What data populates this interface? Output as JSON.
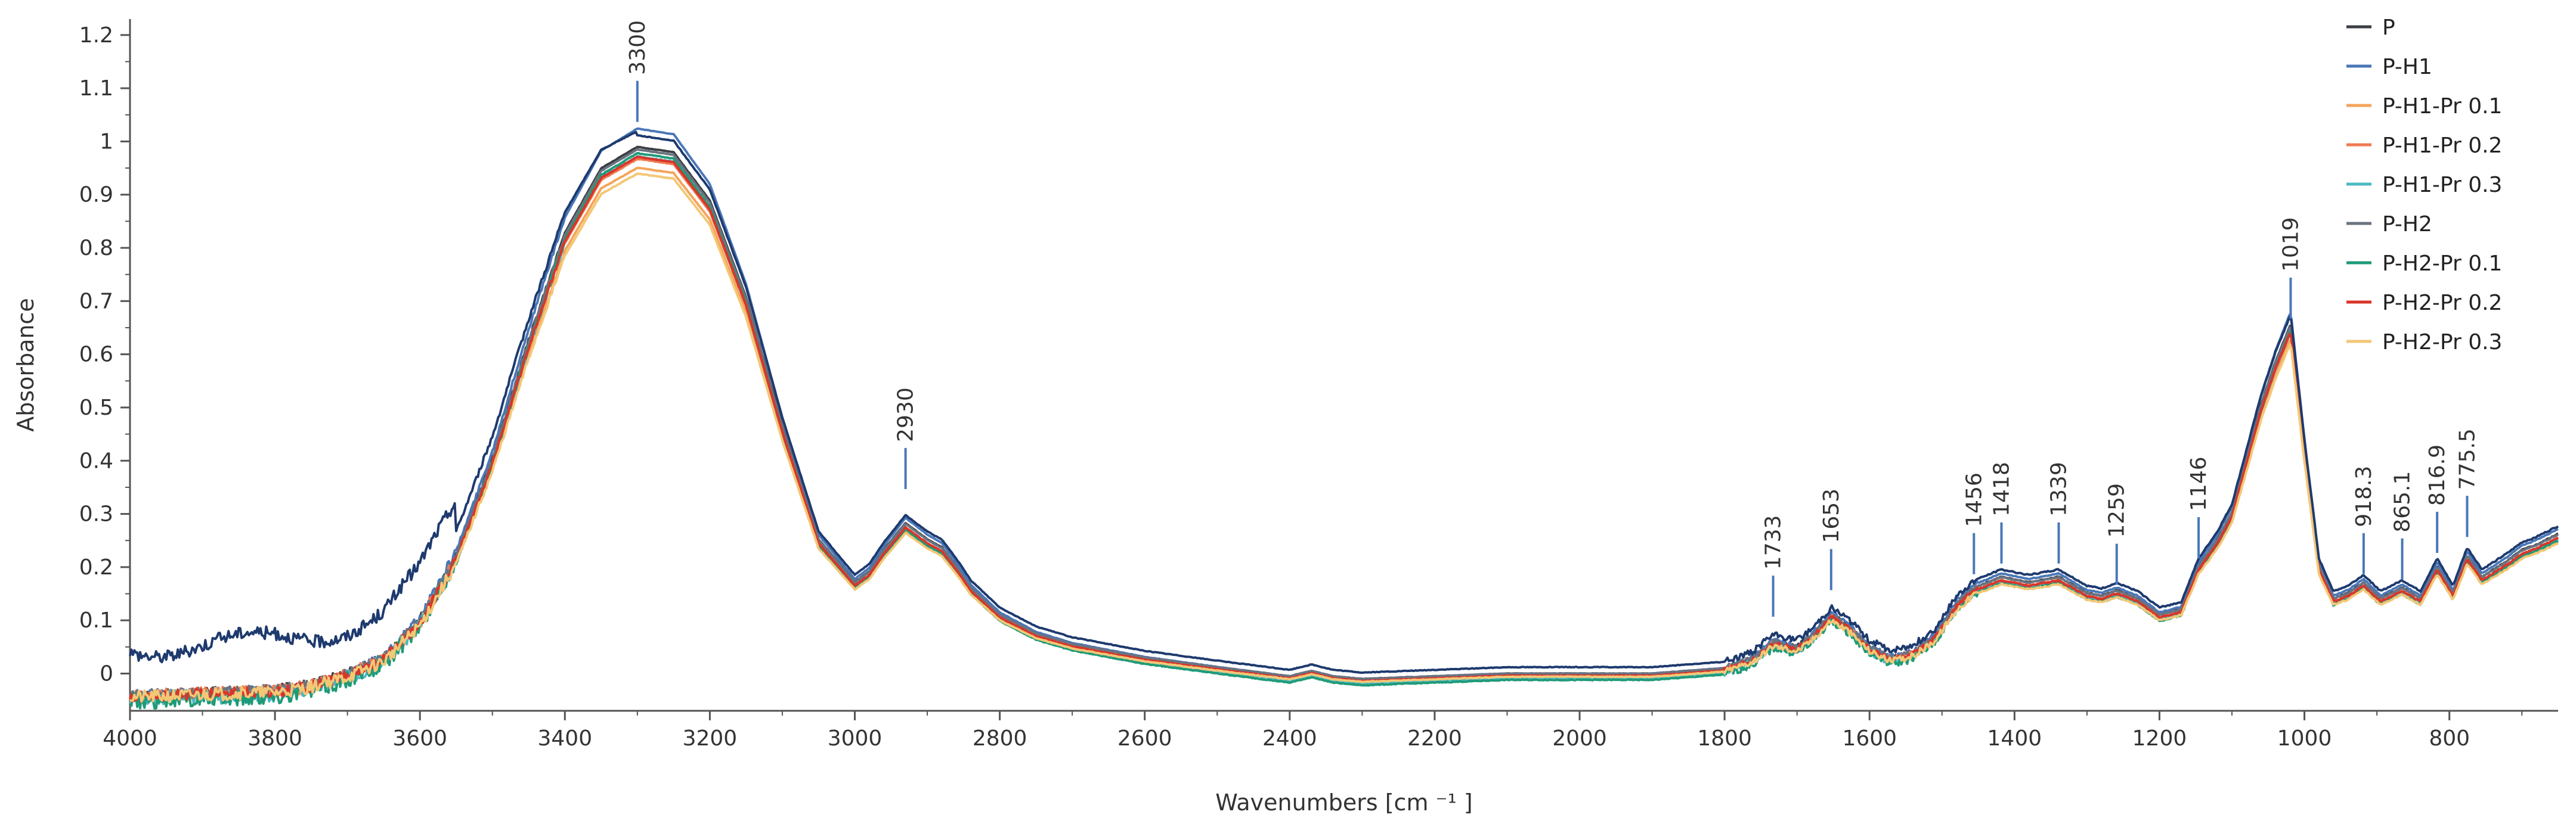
{
  "chart_data": {
    "type": "line",
    "title": "",
    "xlabel": "Wavenumbers [cm ⁻¹ ]",
    "ylabel": "Absorbance",
    "xlim": [
      4000,
      650
    ],
    "ylim": [
      -0.07,
      1.23
    ],
    "x_reversed": true,
    "grid": false,
    "legend_position": "top-right",
    "x_ticks": [
      4000,
      3800,
      3600,
      3400,
      3200,
      3000,
      2800,
      2600,
      2400,
      2200,
      2000,
      1800,
      1600,
      1400,
      1200,
      1000,
      800
    ],
    "x_tick_labels": [
      "4000",
      "3800",
      "3600",
      "3400",
      "3200",
      "3000",
      "2800",
      "2600",
      "2400",
      "2200",
      "2000",
      "1800",
      "1600",
      "1400",
      "1200",
      "1000",
      "800"
    ],
    "y_ticks": [
      0,
      0.1,
      0.2,
      0.3,
      0.4,
      0.5,
      0.6,
      0.7,
      0.8,
      0.9,
      1,
      1.1,
      1.2
    ],
    "y_tick_labels": [
      "0",
      "0.1",
      "0.2",
      "0.3",
      "0.4",
      "0.5",
      "0.6",
      "0.7",
      "0.8",
      "0.9",
      "1",
      "1.1",
      "1.2"
    ],
    "peak_annotations": [
      {
        "label": "3300",
        "x": 3300,
        "y": 1.03
      },
      {
        "label": "2930",
        "x": 2930,
        "y": 0.34
      },
      {
        "label": "1733",
        "x": 1733,
        "y": 0.1
      },
      {
        "label": "1653",
        "x": 1653,
        "y": 0.15
      },
      {
        "label": "1456",
        "x": 1456,
        "y": 0.18
      },
      {
        "label": "1418",
        "x": 1418,
        "y": 0.2
      },
      {
        "label": "1339",
        "x": 1339,
        "y": 0.2
      },
      {
        "label": "1259",
        "x": 1259,
        "y": 0.16
      },
      {
        "label": "1146",
        "x": 1146,
        "y": 0.21
      },
      {
        "label": "1019",
        "x": 1019,
        "y": 0.66
      },
      {
        "label": "918.3",
        "x": 918.3,
        "y": 0.18
      },
      {
        "label": "865.1",
        "x": 865.1,
        "y": 0.17
      },
      {
        "label": "816.9",
        "x": 816.9,
        "y": 0.22
      },
      {
        "label": "775.5",
        "x": 775.5,
        "y": 0.25
      }
    ],
    "base_curve": {
      "x": [
        4000,
        3900,
        3800,
        3750,
        3700,
        3650,
        3600,
        3550,
        3500,
        3450,
        3400,
        3350,
        3300,
        3250,
        3200,
        3150,
        3100,
        3050,
        3000,
        2980,
        2960,
        2930,
        2900,
        2880,
        2860,
        2840,
        2800,
        2750,
        2700,
        2600,
        2500,
        2400,
        2370,
        2340,
        2300,
        2200,
        2100,
        2000,
        1900,
        1800,
        1760,
        1733,
        1700,
        1680,
        1653,
        1630,
        1600,
        1570,
        1540,
        1510,
        1480,
        1456,
        1418,
        1380,
        1339,
        1300,
        1280,
        1259,
        1230,
        1200,
        1170,
        1146,
        1120,
        1100,
        1080,
        1060,
        1040,
        1019,
        1000,
        980,
        960,
        940,
        918.3,
        895,
        865.1,
        840,
        816.9,
        795,
        775.5,
        755,
        720,
        700,
        680,
        650
      ],
      "values": [
        -0.04,
        -0.035,
        -0.03,
        -0.02,
        0.0,
        0.03,
        0.1,
        0.22,
        0.4,
        0.62,
        0.82,
        0.94,
        0.98,
        0.97,
        0.88,
        0.7,
        0.46,
        0.25,
        0.17,
        0.19,
        0.23,
        0.28,
        0.25,
        0.235,
        0.2,
        0.16,
        0.11,
        0.075,
        0.055,
        0.03,
        0.012,
        -0.005,
        0.005,
        -0.005,
        -0.01,
        -0.005,
        0.0,
        0.0,
        0.0,
        0.01,
        0.03,
        0.06,
        0.05,
        0.07,
        0.11,
        0.09,
        0.05,
        0.03,
        0.04,
        0.07,
        0.13,
        0.16,
        0.18,
        0.17,
        0.18,
        0.15,
        0.145,
        0.155,
        0.14,
        0.11,
        0.12,
        0.2,
        0.25,
        0.3,
        0.4,
        0.5,
        0.58,
        0.65,
        0.42,
        0.2,
        0.14,
        0.15,
        0.17,
        0.14,
        0.16,
        0.14,
        0.2,
        0.15,
        0.22,
        0.18,
        0.21,
        0.23,
        0.24,
        0.26
      ]
    },
    "series": [
      {
        "name": "P",
        "color": "#3b3f45",
        "offset": 0.0,
        "scale": 1.01,
        "noise": 0.006
      },
      {
        "name": "P-H1",
        "color": "#4a77b8",
        "offset": 0.0,
        "scale": 1.045,
        "noise": 0.006
      },
      {
        "name": "P-H1-Pr 0.1",
        "color": "#f5a45a",
        "offset": -0.005,
        "scale": 0.975,
        "noise": 0.008
      },
      {
        "name": "P-H1-Pr 0.2",
        "color": "#ef7a52",
        "offset": -0.003,
        "scale": 0.99,
        "noise": 0.008
      },
      {
        "name": "P-H1-Pr 0.3",
        "color": "#4db8c4",
        "offset": -0.008,
        "scale": 1.0,
        "noise": 0.01
      },
      {
        "name": "P-H2",
        "color": "#6b7380",
        "offset": 0.0,
        "scale": 1.005,
        "noise": 0.006
      },
      {
        "name": "P-H2-Pr 0.1",
        "color": "#1f9a78",
        "offset": -0.012,
        "scale": 1.01,
        "noise": 0.01
      },
      {
        "name": "P-H2-Pr 0.2",
        "color": "#d9352a",
        "offset": -0.004,
        "scale": 0.995,
        "noise": 0.007
      },
      {
        "name": "P-H2-Pr 0.3",
        "color": "#f3c776",
        "offset": -0.006,
        "scale": 0.965,
        "noise": 0.008
      },
      {
        "name": "",
        "color": "#1e3a6e",
        "offset": 0.06,
        "scale": 1.02,
        "noise": 0.008,
        "high_freq_offset": 0.09
      }
    ]
  }
}
